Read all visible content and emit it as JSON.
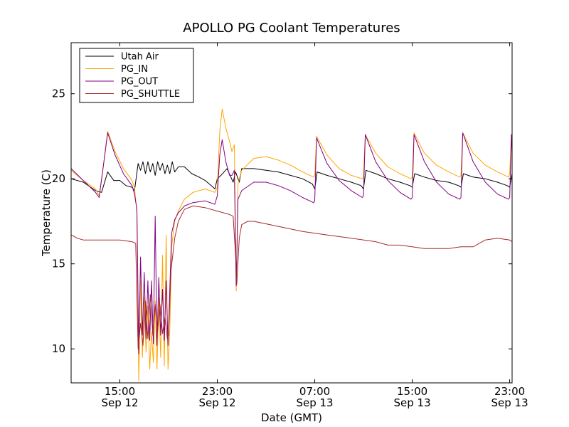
{
  "chart_data": {
    "type": "line",
    "title": "APOLLO PG Coolant Temperatures",
    "xlabel": "Date (GMT)",
    "ylabel": "Temperature (C)",
    "x_unit": "hours since Sep 12 00:00 GMT",
    "xlim": [
      11.0,
      47.2
    ],
    "ylim": [
      8,
      28
    ],
    "grid": false,
    "legend_position": "top-left",
    "y_ticks": [
      10,
      15,
      20,
      25
    ],
    "x_ticks": [
      {
        "x": 15,
        "time": "15:00",
        "date": "Sep 12"
      },
      {
        "x": 23,
        "time": "23:00",
        "date": "Sep 12"
      },
      {
        "x": 31,
        "time": "07:00",
        "date": "Sep 13"
      },
      {
        "x": 39,
        "time": "15:00",
        "date": "Sep 13"
      },
      {
        "x": 47,
        "time": "23:00",
        "date": "Sep 13"
      }
    ],
    "series": [
      {
        "name": "Utah Air",
        "color": "#000000",
        "points": [
          [
            11.0,
            20.0
          ],
          [
            12.0,
            19.8
          ],
          [
            13.0,
            19.3
          ],
          [
            13.5,
            19.2
          ],
          [
            14.0,
            20.4
          ],
          [
            14.5,
            19.9
          ],
          [
            15.0,
            19.9
          ],
          [
            15.5,
            19.6
          ],
          [
            16.0,
            19.5
          ],
          [
            16.2,
            19.3
          ],
          [
            16.5,
            20.9
          ],
          [
            16.7,
            20.5
          ],
          [
            16.9,
            21.0
          ],
          [
            17.1,
            20.3
          ],
          [
            17.3,
            21.0
          ],
          [
            17.5,
            20.4
          ],
          [
            17.7,
            20.9
          ],
          [
            17.9,
            20.2
          ],
          [
            18.1,
            21.0
          ],
          [
            18.3,
            20.5
          ],
          [
            18.5,
            20.9
          ],
          [
            18.7,
            20.3
          ],
          [
            18.9,
            20.8
          ],
          [
            19.1,
            20.3
          ],
          [
            19.3,
            21.0
          ],
          [
            19.5,
            20.4
          ],
          [
            19.8,
            20.7
          ],
          [
            20.3,
            20.7
          ],
          [
            20.9,
            20.3
          ],
          [
            21.5,
            20.1
          ],
          [
            22.0,
            19.9
          ],
          [
            22.5,
            19.6
          ],
          [
            22.8,
            19.4
          ],
          [
            23.0,
            20.0
          ],
          [
            23.3,
            20.2
          ],
          [
            23.8,
            20.6
          ],
          [
            24.3,
            19.8
          ],
          [
            24.5,
            20.4
          ],
          [
            24.8,
            19.8
          ],
          [
            25.0,
            20.6
          ],
          [
            26.0,
            20.6
          ],
          [
            27.0,
            20.5
          ],
          [
            28.0,
            20.4
          ],
          [
            29.0,
            20.2
          ],
          [
            30.0,
            20.0
          ],
          [
            30.8,
            19.7
          ],
          [
            31.0,
            19.4
          ],
          [
            31.2,
            20.4
          ],
          [
            32.0,
            20.2
          ],
          [
            33.0,
            20.0
          ],
          [
            34.0,
            19.8
          ],
          [
            34.8,
            19.6
          ],
          [
            35.0,
            19.4
          ],
          [
            35.2,
            20.5
          ],
          [
            36.0,
            20.3
          ],
          [
            37.0,
            20.0
          ],
          [
            38.0,
            19.8
          ],
          [
            38.8,
            19.6
          ],
          [
            39.0,
            19.5
          ],
          [
            39.2,
            20.3
          ],
          [
            40.0,
            20.1
          ],
          [
            41.0,
            19.9
          ],
          [
            42.0,
            19.8
          ],
          [
            42.8,
            19.6
          ],
          [
            43.0,
            19.5
          ],
          [
            43.2,
            20.3
          ],
          [
            44.0,
            20.1
          ],
          [
            45.0,
            20.0
          ],
          [
            46.0,
            19.8
          ],
          [
            46.8,
            19.6
          ],
          [
            47.0,
            19.5
          ],
          [
            47.2,
            20.3
          ]
        ]
      },
      {
        "name": "PG_IN",
        "color": "#ffa500",
        "points": [
          [
            11.0,
            20.5
          ],
          [
            12.0,
            19.9
          ],
          [
            13.0,
            19.4
          ],
          [
            13.3,
            19.0
          ],
          [
            13.6,
            20.5
          ],
          [
            14.0,
            22.8
          ],
          [
            14.6,
            21.6
          ],
          [
            15.3,
            20.6
          ],
          [
            16.0,
            19.9
          ],
          [
            16.2,
            19.5
          ],
          [
            16.4,
            18.0
          ],
          [
            16.55,
            8.1
          ],
          [
            16.7,
            14.0
          ],
          [
            16.85,
            9.5
          ],
          [
            17.0,
            13.0
          ],
          [
            17.15,
            9.8
          ],
          [
            17.3,
            12.5
          ],
          [
            17.45,
            8.8
          ],
          [
            17.6,
            11.0
          ],
          [
            17.75,
            9.2
          ],
          [
            17.9,
            12.8
          ],
          [
            18.05,
            8.8
          ],
          [
            18.2,
            13.0
          ],
          [
            18.35,
            9.5
          ],
          [
            18.5,
            15.5
          ],
          [
            18.65,
            9.0
          ],
          [
            18.8,
            16.7
          ],
          [
            18.95,
            8.8
          ],
          [
            19.1,
            11.0
          ],
          [
            19.25,
            16.0
          ],
          [
            19.5,
            17.5
          ],
          [
            19.8,
            18.1
          ],
          [
            20.3,
            18.8
          ],
          [
            21.0,
            19.2
          ],
          [
            22.0,
            19.4
          ],
          [
            22.8,
            19.2
          ],
          [
            23.0,
            19.5
          ],
          [
            23.2,
            22.8
          ],
          [
            23.4,
            24.1
          ],
          [
            23.7,
            23.0
          ],
          [
            24.0,
            22.2
          ],
          [
            24.2,
            21.6
          ],
          [
            24.4,
            22.0
          ],
          [
            24.55,
            13.4
          ],
          [
            24.7,
            19.7
          ],
          [
            25.0,
            20.5
          ],
          [
            26.0,
            21.2
          ],
          [
            27.0,
            21.3
          ],
          [
            28.0,
            21.1
          ],
          [
            29.0,
            20.8
          ],
          [
            30.0,
            20.4
          ],
          [
            30.9,
            20.1
          ],
          [
            31.0,
            20.2
          ],
          [
            31.15,
            22.5
          ],
          [
            32.0,
            21.4
          ],
          [
            33.0,
            20.6
          ],
          [
            34.0,
            20.2
          ],
          [
            34.9,
            20.0
          ],
          [
            35.0,
            20.1
          ],
          [
            35.15,
            22.6
          ],
          [
            36.0,
            21.5
          ],
          [
            37.0,
            20.7
          ],
          [
            38.0,
            20.3
          ],
          [
            38.9,
            20.0
          ],
          [
            39.0,
            20.1
          ],
          [
            39.15,
            22.7
          ],
          [
            40.0,
            21.5
          ],
          [
            41.0,
            20.8
          ],
          [
            42.0,
            20.4
          ],
          [
            42.9,
            20.1
          ],
          [
            43.0,
            20.2
          ],
          [
            43.15,
            22.7
          ],
          [
            44.0,
            21.5
          ],
          [
            45.0,
            20.8
          ],
          [
            46.0,
            20.4
          ],
          [
            46.9,
            20.1
          ],
          [
            47.0,
            20.3
          ],
          [
            47.15,
            22.6
          ],
          [
            47.2,
            22.0
          ]
        ]
      },
      {
        "name": "PG_OUT",
        "color": "#800080",
        "points": [
          [
            11.0,
            20.6
          ],
          [
            12.0,
            19.9
          ],
          [
            13.0,
            19.2
          ],
          [
            13.3,
            18.9
          ],
          [
            13.6,
            20.5
          ],
          [
            14.0,
            22.7
          ],
          [
            14.6,
            21.4
          ],
          [
            15.3,
            20.3
          ],
          [
            16.0,
            19.6
          ],
          [
            16.2,
            19.1
          ],
          [
            16.4,
            18.2
          ],
          [
            16.55,
            9.7
          ],
          [
            16.7,
            15.4
          ],
          [
            16.85,
            10.8
          ],
          [
            17.0,
            14.5
          ],
          [
            17.15,
            10.6
          ],
          [
            17.3,
            14.0
          ],
          [
            17.45,
            10.5
          ],
          [
            17.6,
            14.0
          ],
          [
            17.75,
            10.3
          ],
          [
            17.9,
            17.8
          ],
          [
            18.05,
            10.2
          ],
          [
            18.2,
            14.2
          ],
          [
            18.35,
            10.8
          ],
          [
            18.5,
            13.5
          ],
          [
            18.65,
            10.5
          ],
          [
            18.8,
            14.0
          ],
          [
            18.95,
            10.2
          ],
          [
            19.1,
            13.5
          ],
          [
            19.25,
            16.8
          ],
          [
            19.5,
            17.6
          ],
          [
            19.8,
            18.0
          ],
          [
            20.3,
            18.4
          ],
          [
            21.0,
            18.6
          ],
          [
            22.0,
            18.7
          ],
          [
            22.8,
            18.5
          ],
          [
            23.0,
            19.0
          ],
          [
            23.2,
            21.4
          ],
          [
            23.4,
            22.3
          ],
          [
            23.7,
            21.0
          ],
          [
            24.0,
            20.2
          ],
          [
            24.2,
            20.2
          ],
          [
            24.4,
            20.5
          ],
          [
            24.55,
            13.7
          ],
          [
            24.7,
            18.8
          ],
          [
            25.0,
            19.3
          ],
          [
            26.0,
            19.8
          ],
          [
            27.0,
            19.8
          ],
          [
            28.0,
            19.6
          ],
          [
            29.0,
            19.3
          ],
          [
            30.0,
            18.9
          ],
          [
            30.9,
            18.6
          ],
          [
            31.0,
            18.7
          ],
          [
            31.15,
            22.4
          ],
          [
            32.0,
            20.9
          ],
          [
            33.0,
            19.9
          ],
          [
            34.0,
            19.3
          ],
          [
            34.9,
            18.9
          ],
          [
            35.0,
            19.0
          ],
          [
            35.15,
            22.6
          ],
          [
            36.0,
            21.0
          ],
          [
            37.0,
            19.9
          ],
          [
            38.0,
            19.2
          ],
          [
            38.9,
            18.8
          ],
          [
            39.0,
            18.9
          ],
          [
            39.15,
            22.6
          ],
          [
            40.0,
            21.0
          ],
          [
            41.0,
            19.8
          ],
          [
            42.0,
            19.1
          ],
          [
            42.9,
            18.8
          ],
          [
            43.0,
            18.9
          ],
          [
            43.15,
            22.7
          ],
          [
            44.0,
            21.0
          ],
          [
            45.0,
            19.8
          ],
          [
            46.0,
            19.1
          ],
          [
            46.9,
            18.8
          ],
          [
            47.0,
            18.9
          ],
          [
            47.15,
            22.6
          ],
          [
            47.2,
            21.5
          ]
        ]
      },
      {
        "name": "PG_SHUTTLE",
        "color": "#a52a2a",
        "points": [
          [
            11.0,
            16.7
          ],
          [
            11.5,
            16.5
          ],
          [
            12.0,
            16.4
          ],
          [
            13.0,
            16.4
          ],
          [
            14.0,
            16.4
          ],
          [
            15.0,
            16.4
          ],
          [
            16.0,
            16.3
          ],
          [
            16.3,
            16.2
          ],
          [
            16.5,
            10.0
          ],
          [
            16.7,
            11.5
          ],
          [
            16.9,
            10.2
          ],
          [
            17.1,
            12.8
          ],
          [
            17.3,
            10.6
          ],
          [
            17.5,
            13.2
          ],
          [
            17.7,
            10.8
          ],
          [
            17.9,
            12.6
          ],
          [
            18.1,
            11.0
          ],
          [
            18.3,
            12.6
          ],
          [
            18.5,
            10.9
          ],
          [
            18.7,
            11.9
          ],
          [
            18.9,
            10.6
          ],
          [
            19.0,
            10.8
          ],
          [
            19.2,
            14.6
          ],
          [
            19.5,
            16.5
          ],
          [
            19.8,
            17.5
          ],
          [
            20.3,
            18.2
          ],
          [
            21.0,
            18.4
          ],
          [
            22.0,
            18.3
          ],
          [
            23.0,
            18.1
          ],
          [
            24.0,
            17.9
          ],
          [
            24.3,
            17.8
          ],
          [
            24.5,
            15.5
          ],
          [
            24.6,
            13.8
          ],
          [
            24.8,
            16.5
          ],
          [
            25.0,
            17.3
          ],
          [
            25.5,
            17.5
          ],
          [
            26.0,
            17.5
          ],
          [
            28.0,
            17.2
          ],
          [
            30.0,
            16.9
          ],
          [
            32.0,
            16.7
          ],
          [
            34.0,
            16.5
          ],
          [
            36.0,
            16.3
          ],
          [
            37.0,
            16.1
          ],
          [
            38.0,
            16.1
          ],
          [
            39.0,
            16.0
          ],
          [
            40.0,
            15.9
          ],
          [
            41.0,
            15.9
          ],
          [
            42.0,
            15.9
          ],
          [
            43.0,
            16.0
          ],
          [
            44.0,
            16.0
          ],
          [
            45.0,
            16.4
          ],
          [
            46.0,
            16.5
          ],
          [
            47.0,
            16.4
          ],
          [
            47.2,
            16.3
          ]
        ]
      }
    ]
  }
}
